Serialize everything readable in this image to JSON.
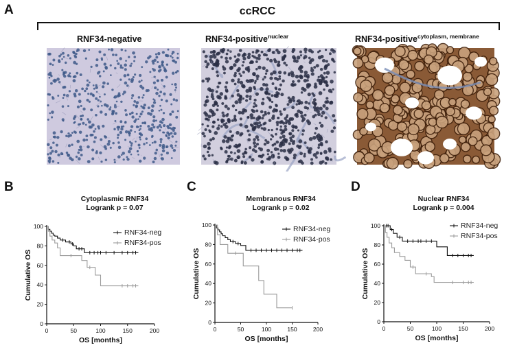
{
  "panel_a": {
    "letter": "A",
    "title": "ccRCC",
    "images": [
      {
        "label": "RNF34-negative",
        "sup": "",
        "stain": "negative"
      },
      {
        "label": "RNF34-positive",
        "sup": "nuclear",
        "stain": "nuclear"
      },
      {
        "label": "RNF34-positive",
        "sup": "cytoplasm, membrane",
        "stain": "membrane"
      }
    ]
  },
  "colors": {
    "neg_line": "#111111",
    "pos_line": "#9a9a9a",
    "stain_blue": "#3f5a8a",
    "stain_brown": "#5e3314"
  },
  "chart_data": [
    {
      "type": "line",
      "letter": "B",
      "title": "Cytoplasmic RNF34",
      "subtitle": "Logrank p = 0.07",
      "xlabel": "OS [months]",
      "ylabel": "Cumulative OS",
      "xlim": [
        0,
        200
      ],
      "ylim": [
        0,
        100
      ],
      "xticks": [
        0,
        50,
        100,
        150,
        200
      ],
      "yticks": [
        0,
        20,
        40,
        60,
        80,
        100
      ],
      "series": [
        {
          "name": "RNF34-neg",
          "x": [
            0,
            3,
            6,
            9,
            12,
            15,
            20,
            25,
            35,
            45,
            50,
            55,
            70,
            170
          ],
          "y": [
            100,
            97,
            95,
            93,
            91,
            90,
            88,
            86,
            84,
            82,
            80,
            77,
            73,
            73
          ],
          "censor_x": [
            30,
            42,
            48,
            60,
            65,
            80,
            88,
            95,
            100,
            110,
            125,
            140,
            150,
            160,
            165
          ]
        },
        {
          "name": "RNF34-pos",
          "x": [
            0,
            3,
            6,
            10,
            15,
            20,
            25,
            60,
            65,
            75,
            90,
            100,
            170
          ],
          "y": [
            100,
            95,
            90,
            86,
            83,
            78,
            70,
            70,
            65,
            58,
            50,
            39,
            39
          ],
          "censor_x": [
            45,
            80,
            140,
            150,
            160,
            165
          ]
        }
      ]
    },
    {
      "type": "line",
      "letter": "C",
      "title": "Membranous RNF34",
      "subtitle": "Logrank p = 0.02",
      "xlabel": "OS [months]",
      "ylabel": "Cumulative OS",
      "xlim": [
        0,
        200
      ],
      "ylim": [
        0,
        100
      ],
      "xticks": [
        0,
        50,
        100,
        150,
        200
      ],
      "yticks": [
        0,
        20,
        40,
        60,
        80,
        100
      ],
      "series": [
        {
          "name": "RNF34-neg",
          "x": [
            0,
            3,
            6,
            9,
            12,
            15,
            20,
            25,
            30,
            40,
            50,
            60,
            170
          ],
          "y": [
            100,
            97,
            95,
            93,
            91,
            89,
            87,
            85,
            83,
            81,
            79,
            74,
            74
          ],
          "censor_x": [
            35,
            45,
            70,
            80,
            90,
            100,
            110,
            120,
            130,
            140,
            150,
            160,
            165
          ]
        },
        {
          "name": "RNF34-pos",
          "x": [
            0,
            5,
            10,
            25,
            55,
            85,
            95,
            120,
            150
          ],
          "y": [
            100,
            90,
            80,
            71,
            58,
            43,
            29,
            15,
            15
          ],
          "censor_x": [
            40,
            150
          ]
        }
      ]
    },
    {
      "type": "line",
      "letter": "D",
      "title": "Nuclear RNF34",
      "subtitle": "Logrank p = 0.004",
      "xlabel": "OS [months]",
      "ylabel": "Cumulative OS",
      "xlim": [
        0,
        200
      ],
      "ylim": [
        0,
        100
      ],
      "xticks": [
        0,
        50,
        100,
        150,
        200
      ],
      "yticks": [
        0,
        20,
        40,
        60,
        80,
        100
      ],
      "series": [
        {
          "name": "RNF34-neg",
          "x": [
            0,
            12,
            18,
            25,
            35,
            100,
            120,
            170
          ],
          "y": [
            100,
            96,
            92,
            88,
            84,
            78,
            69,
            69
          ],
          "censor_x": [
            5,
            8,
            15,
            30,
            45,
            55,
            65,
            70,
            80,
            90,
            130,
            140,
            150,
            160,
            165
          ]
        },
        {
          "name": "RNF34-pos",
          "x": [
            0,
            3,
            6,
            10,
            15,
            20,
            30,
            40,
            50,
            60,
            90,
            95,
            170
          ],
          "y": [
            100,
            93,
            88,
            82,
            77,
            72,
            68,
            64,
            57,
            50,
            47,
            41,
            41
          ],
          "censor_x": [
            55,
            80,
            130,
            150,
            160,
            165
          ]
        }
      ]
    }
  ]
}
